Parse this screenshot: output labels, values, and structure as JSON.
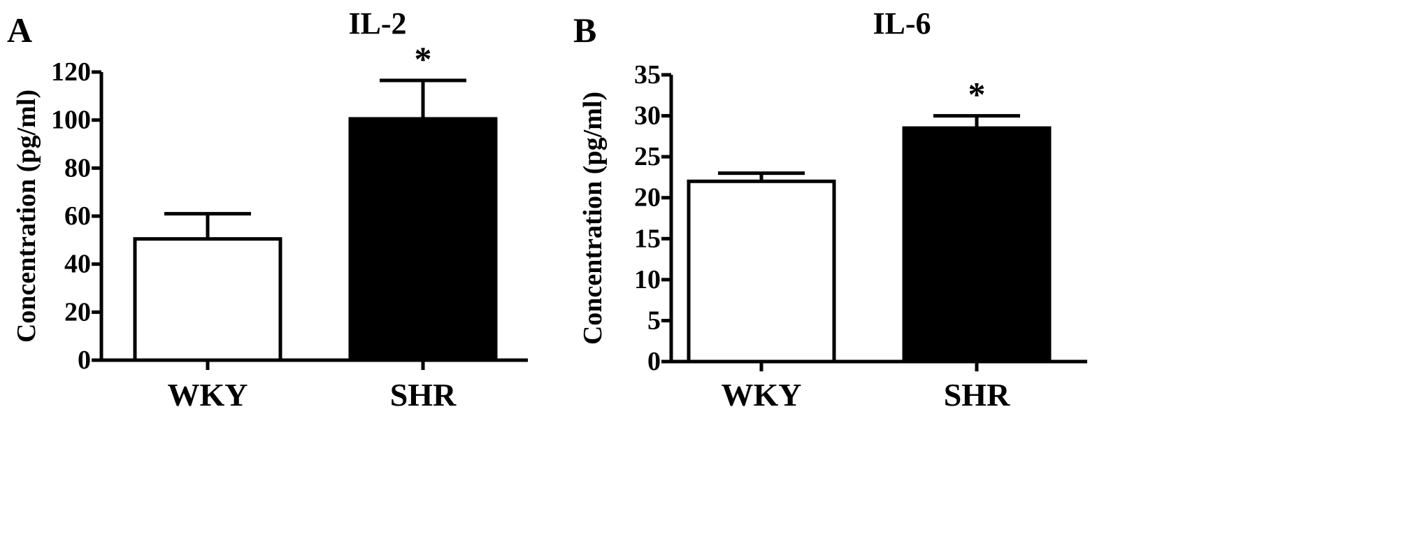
{
  "panels": [
    {
      "letter": "A"
    },
    {
      "letter": "B"
    }
  ],
  "chart_data": [
    {
      "type": "bar",
      "title": "IL-2",
      "ylabel": "Concentration (pg/ml)",
      "xlabel": "",
      "categories": [
        "WKY",
        "SHR"
      ],
      "values": [
        50.5,
        100.5
      ],
      "errors": [
        10.5,
        16
      ],
      "bar_colors": [
        "#ffffff",
        "#000000"
      ],
      "significance": [
        "",
        "*"
      ],
      "ylim": [
        0,
        120
      ],
      "yticks": [
        "0",
        "20",
        "40",
        "60",
        "80",
        "100",
        "120"
      ],
      "grid": false,
      "legend": "none"
    },
    {
      "type": "bar",
      "title": "IL-6",
      "ylabel": "Concentration (pg/ml)",
      "xlabel": "",
      "categories": [
        "WKY",
        "SHR"
      ],
      "values": [
        22,
        28.5
      ],
      "errors": [
        1,
        1.5
      ],
      "bar_colors": [
        "#ffffff",
        "#000000"
      ],
      "significance": [
        "",
        "*"
      ],
      "ylim": [
        0,
        35
      ],
      "yticks": [
        "0",
        "5",
        "10",
        "15",
        "20",
        "25",
        "30",
        "35"
      ],
      "grid": false,
      "legend": "none"
    }
  ]
}
